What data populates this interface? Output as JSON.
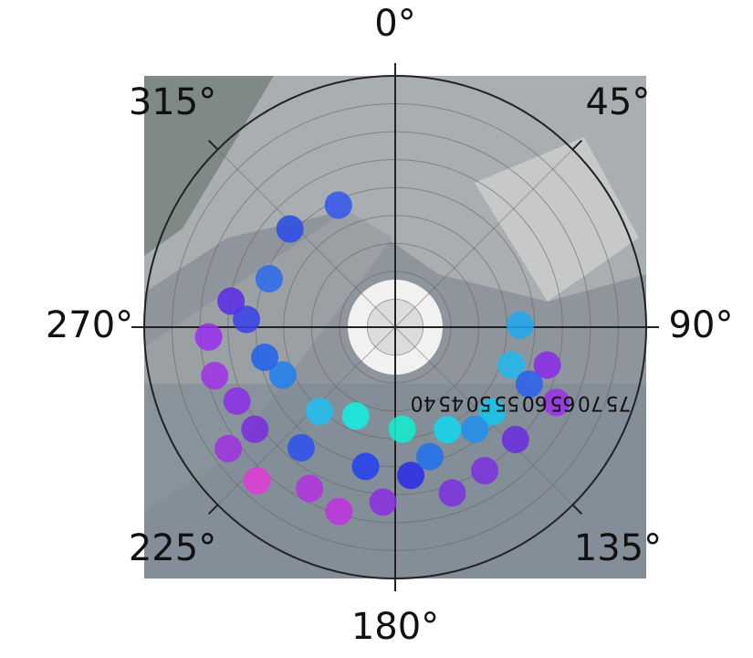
{
  "chart_data": {
    "type": "polar_scatter",
    "theta": [
      335,
      313,
      291,
      279,
      267,
      255,
      245,
      234,
      222,
      208,
      197,
      184,
      174,
      161,
      148,
      133,
      104,
      89,
      108,
      131,
      153,
      176,
      204,
      222,
      247,
      257,
      273,
      218,
      192,
      165,
      142,
      113,
      115,
      234
    ],
    "r": [
      59.1,
      60.8,
      59.2,
      64.8,
      68.5,
      68.5,
      66.3,
      66.1,
      72.0,
      67.7,
      69.5,
      66.4,
      61.7,
      66.4,
      65.3,
      64.5,
      63.1,
      57.4,
      56.9,
      58.1,
      55.6,
      53.3,
      52.4,
      55.3,
      56.9,
      59.0,
      61.7,
      62.4,
      60.5,
      59.0,
      58.2,
      61.1,
      66.9,
      72.0
    ],
    "colors": [
      "#3355ee",
      "#2a4be8",
      "#2a6af0",
      "#5a2ae8",
      "#9a2ef0",
      "#a030e8",
      "#8a2ee8",
      "#7a2ae0",
      "#e03ad8",
      "#b030e0",
      "#c030e0",
      "#8a2ee0",
      "#2a2ae8",
      "#7a30e0",
      "#7a30e0",
      "#6a2ae0",
      "#8a2ae8",
      "#20a8f0",
      "#20b8f0",
      "#10c8f0",
      "#10d8f0",
      "#10f0d0",
      "#10f0e0",
      "#20c0f0",
      "#2080f0",
      "#2060f0",
      "#3a40e8",
      "#2a50f0",
      "#2040f0",
      "#2070f0",
      "#2090f0",
      "#2a60f0",
      "#9a30e8",
      "#a030e0"
    ],
    "rlim": [
      35,
      80
    ],
    "rticks": [
      40,
      45,
      50,
      55,
      60,
      65,
      70,
      75
    ],
    "thetaticks": [
      {
        "value": 0,
        "label": "0°"
      },
      {
        "value": 45,
        "label": "45°"
      },
      {
        "value": 90,
        "label": "90°"
      },
      {
        "value": 135,
        "label": "135°"
      },
      {
        "value": 180,
        "label": "180°"
      },
      {
        "value": 225,
        "label": "225°"
      },
      {
        "value": 270,
        "label": "270°"
      },
      {
        "value": 315,
        "label": "315°"
      }
    ],
    "grid": true
  }
}
